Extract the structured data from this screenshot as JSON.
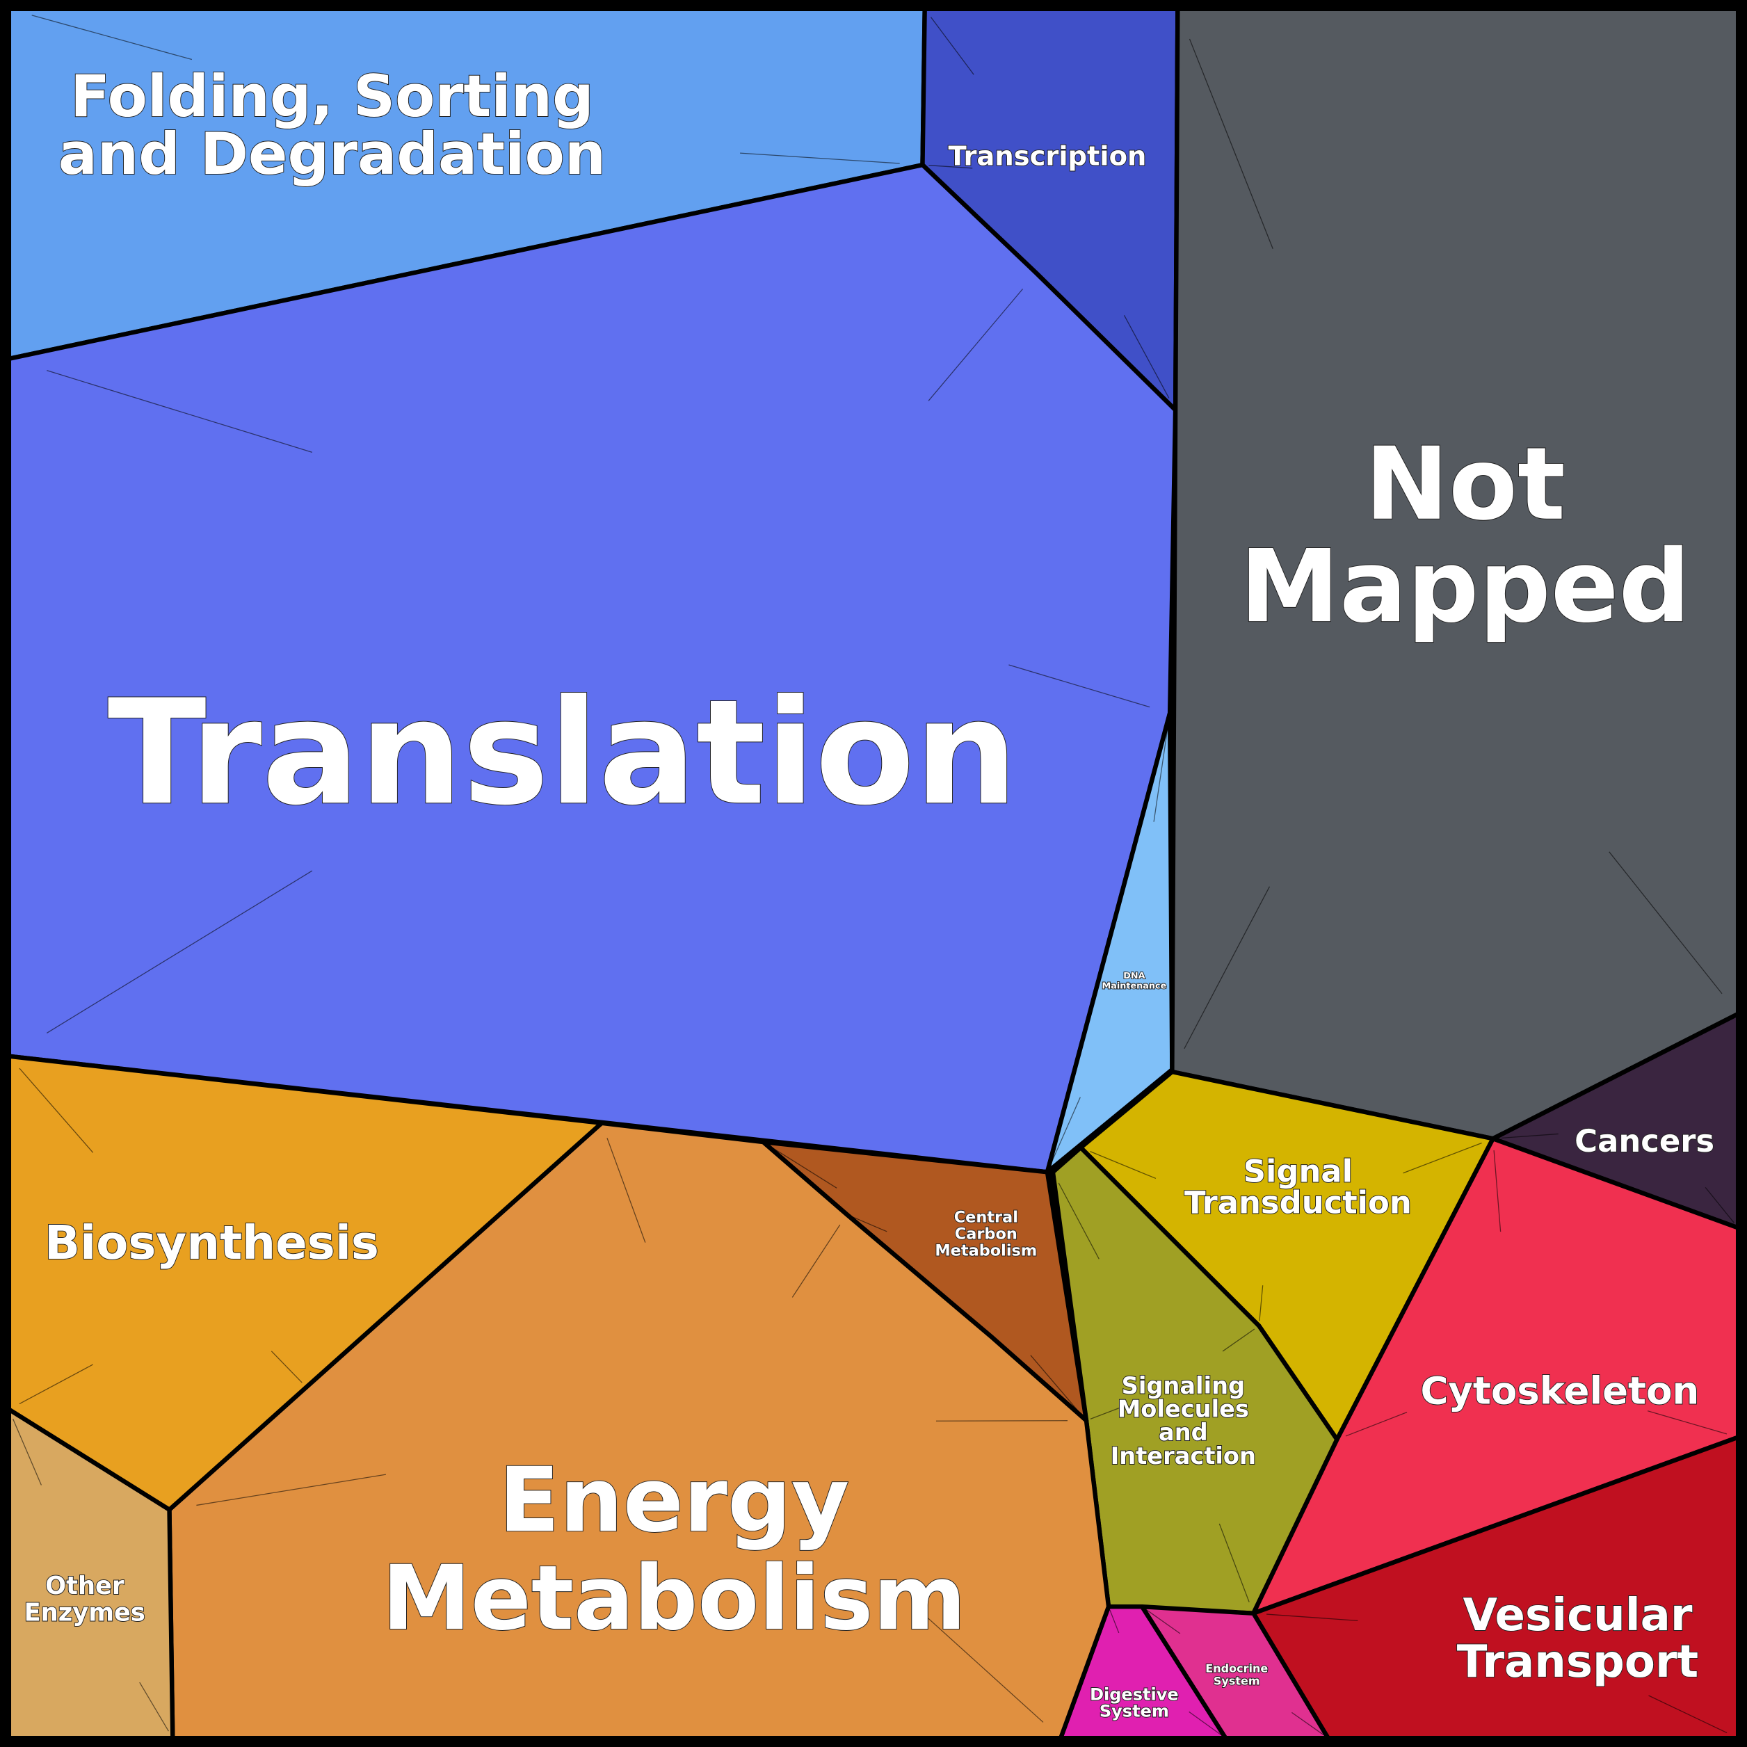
{
  "categories": [
    {
      "id": "folding",
      "label": [
        "Folding, Sorting",
        "and Degradation"
      ],
      "color": "#62a0f0"
    },
    {
      "id": "transcription",
      "label": [
        "Transcription"
      ],
      "color": "#4050c8"
    },
    {
      "id": "translation",
      "label": [
        "Translation"
      ],
      "color": "#6070f0"
    },
    {
      "id": "dna",
      "label": [
        "DNA",
        "Maintenance"
      ],
      "color": "#80c0f8"
    },
    {
      "id": "notmapped",
      "label": [
        "Not",
        "Mapped"
      ],
      "color": "#555a60"
    },
    {
      "id": "cancers",
      "label": [
        "Cancers"
      ],
      "color": "#3a2540"
    },
    {
      "id": "signal",
      "label": [
        "Signal",
        "Transduction"
      ],
      "color": "#d4b400"
    },
    {
      "id": "signaling",
      "label": [
        "Signaling",
        "Molecules",
        "and",
        "Interaction"
      ],
      "color": "#a0a024"
    },
    {
      "id": "cytoskeleton",
      "label": [
        "Cytoskeleton"
      ],
      "color": "#f03050"
    },
    {
      "id": "vesicular",
      "label": [
        "Vesicular",
        "Transport"
      ],
      "color": "#c01020"
    },
    {
      "id": "endocrine",
      "label": [
        "Endocrine",
        "System"
      ],
      "color": "#e03090"
    },
    {
      "id": "digestive",
      "label": [
        "Digestive",
        "System"
      ],
      "color": "#e020b0"
    },
    {
      "id": "carbon",
      "label": [
        "Central",
        "Carbon",
        "Metabolism"
      ],
      "color": "#b05820"
    },
    {
      "id": "energy",
      "label": [
        "Energy",
        "Metabolism"
      ],
      "color": "#e09040"
    },
    {
      "id": "biosynthesis",
      "label": [
        "Biosynthesis"
      ],
      "color": "#e8a020"
    },
    {
      "id": "other",
      "label": [
        "Other",
        "Enzymes"
      ],
      "color": "#d8a860"
    }
  ]
}
